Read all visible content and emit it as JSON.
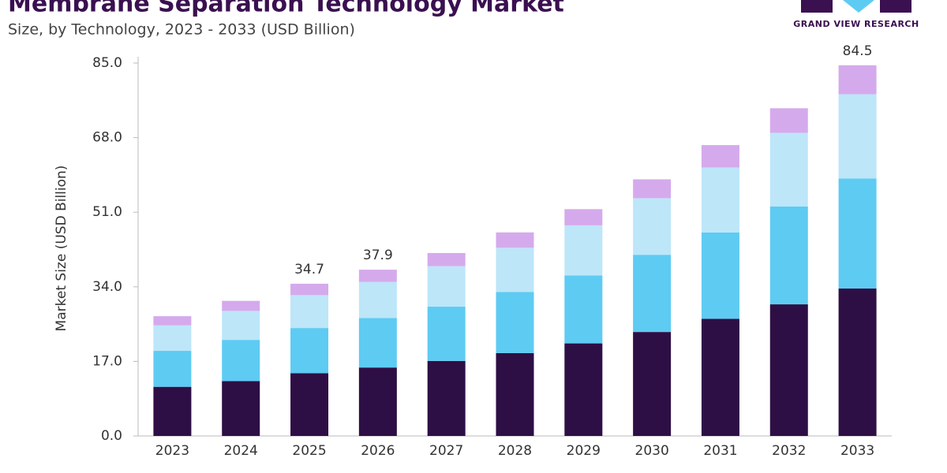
{
  "logo": "GRAND VIEW RESEARCH",
  "chart_data": {
    "type": "stacked-bar",
    "title": "Membrane Separation Technology Market",
    "subtitle": "Size, by Technology, 2023 - 2033 (USD Billion)",
    "y_label": "Market Size (USD Billion)",
    "categories": [
      "2023",
      "2024",
      "2025",
      "2026",
      "2027",
      "2028",
      "2029",
      "2030",
      "2031",
      "2032",
      "2033"
    ],
    "series": [
      {
        "color": "#2e0f45",
        "values": [
          11.2,
          12.5,
          14.3,
          15.6,
          17.1,
          18.9,
          21.1,
          23.7,
          26.7,
          30.0,
          33.6
        ]
      },
      {
        "color": "#5ecbf3",
        "values": [
          8.2,
          9.4,
          10.3,
          11.3,
          12.4,
          13.9,
          15.5,
          17.6,
          19.7,
          22.3,
          25.1
        ]
      },
      {
        "color": "#bde6f8",
        "values": [
          5.8,
          6.6,
          7.5,
          8.2,
          9.2,
          10.1,
          11.4,
          12.9,
          14.8,
          16.8,
          19.2
        ]
      },
      {
        "color": "#d5aaec",
        "values": [
          2.1,
          2.3,
          2.6,
          2.8,
          3.0,
          3.5,
          3.7,
          4.3,
          5.1,
          5.6,
          6.6
        ]
      }
    ],
    "totals": [
      null,
      null,
      34.7,
      37.9,
      null,
      null,
      null,
      null,
      null,
      null,
      84.5
    ],
    "ylim": [
      0,
      85
    ],
    "yticks": [
      {
        "value": 0,
        "label": "0.0"
      },
      {
        "value": 17,
        "label": "17.0"
      },
      {
        "value": 34,
        "label": "34.0"
      },
      {
        "value": 51,
        "label": "51.0"
      },
      {
        "value": 68,
        "label": "68.0"
      },
      {
        "value": 85,
        "label": "85.0"
      }
    ],
    "grid": false
  }
}
